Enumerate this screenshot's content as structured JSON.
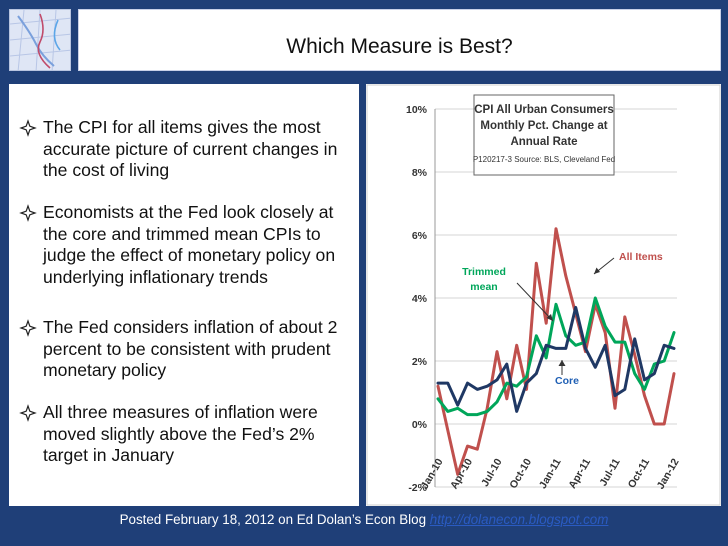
{
  "slide": {
    "title": "Which Measure is Best?",
    "bullets": [
      "The CPI for all items gives the most accurate picture of current changes in the cost of living",
      "Economists at the Fed look closely at the core and trimmed mean CPIs to judge the effect of monetary policy on underlying inflationary trends",
      "The Fed considers inflation of about 2 percent to be consistent with prudent monetary policy",
      "All three measures of inflation were moved slightly above the Fed’s 2% target in January"
    ],
    "footer_text": "Posted February 18, 2012 on Ed Dolan’s Econ Blog",
    "footer_link": "http://dolanecon.blogspot.com",
    "bullet_icon": "four-point-star-icon"
  },
  "chart_data": {
    "type": "line",
    "title": "CPI All Urban Consumers Monthly Pct. Change at Annual Rate",
    "subtitle": "P120217-3 Source: BLS, Cleveland Fed",
    "x_tick_labels": [
      "Jan-10",
      "Apr-10",
      "Jul-10",
      "Oct-10",
      "Jan-11",
      "Apr-11",
      "Jul-11",
      "Oct-11",
      "Jan-12"
    ],
    "y_tick_labels": [
      "10%",
      "8%",
      "6%",
      "4%",
      "2%",
      "0%",
      "-2%"
    ],
    "ylim": [
      -2,
      10
    ],
    "grid": "horizontal",
    "annotations": [
      "All Items",
      "Trimmed mean",
      "Core"
    ],
    "series": [
      {
        "name": "All Items",
        "color": "#c0504d",
        "values": [
          1.2,
          -0.2,
          -1.6,
          -0.7,
          -0.8,
          0.5,
          2.3,
          0.8,
          2.5,
          1.1,
          5.1,
          3.2,
          6.2,
          4.7,
          3.5,
          2.3,
          3.8,
          2.9,
          0.5,
          3.4,
          2.2,
          0.9,
          0.0,
          0.0,
          1.6
        ]
      },
      {
        "name": "Trimmed mean",
        "color": "#00a65a",
        "values": [
          0.8,
          0.4,
          0.5,
          0.3,
          0.3,
          0.4,
          0.7,
          1.3,
          1.2,
          1.5,
          2.8,
          2.1,
          3.8,
          2.8,
          2.5,
          2.6,
          4.0,
          3.1,
          2.6,
          2.6,
          1.6,
          1.1,
          1.9,
          2.0,
          2.9
        ]
      },
      {
        "name": "Core",
        "color": "#1f3864",
        "values": [
          1.3,
          1.3,
          0.6,
          1.3,
          1.1,
          1.2,
          1.4,
          1.9,
          0.4,
          1.3,
          1.6,
          2.5,
          2.4,
          2.4,
          3.7,
          2.4,
          1.8,
          2.5,
          0.9,
          1.1,
          2.7,
          1.4,
          1.6,
          2.5,
          2.4
        ]
      }
    ]
  }
}
